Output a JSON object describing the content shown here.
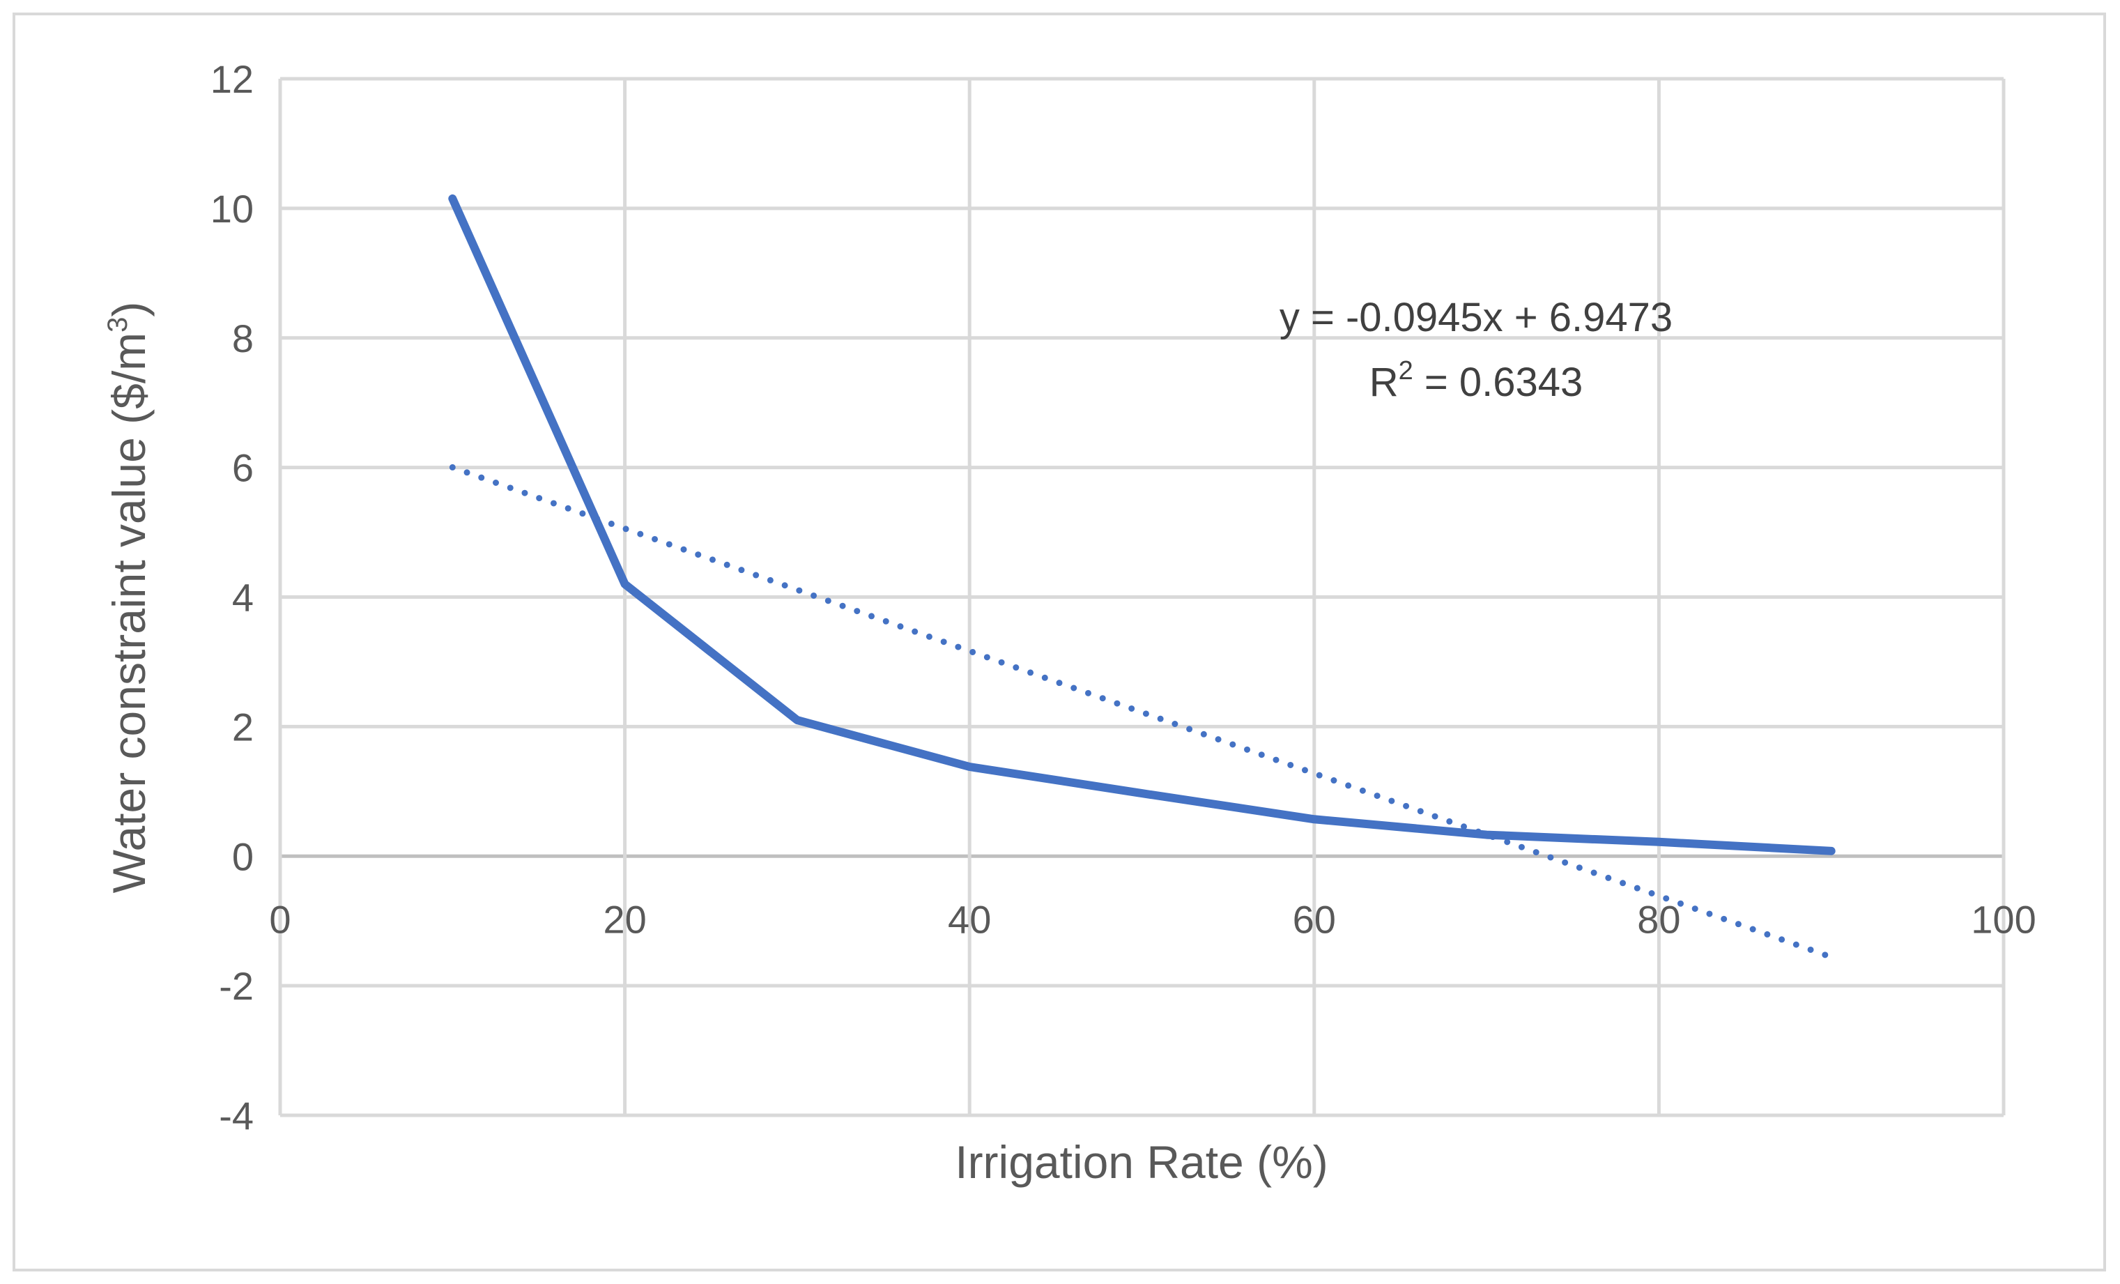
{
  "chart_data": {
    "type": "line",
    "title": "",
    "xlabel": "Irrigation Rate (%)",
    "ylabel_main": "Water constraint value ($/m",
    "ylabel_sup": "3",
    "ylabel_end": ")",
    "xlim": [
      0,
      100
    ],
    "ylim": [
      -4,
      12
    ],
    "xticks": [
      0,
      20,
      40,
      60,
      80,
      100
    ],
    "yticks": [
      -4,
      -2,
      0,
      2,
      4,
      6,
      8,
      10,
      12
    ],
    "grid": true,
    "legend": "none",
    "series": [
      {
        "x": [
          10,
          20,
          30,
          40,
          50,
          60,
          70,
          80,
          90
        ],
        "values": [
          10.15,
          4.2,
          2.1,
          1.38,
          0.97,
          0.57,
          0.33,
          0.22,
          0.08
        ],
        "color": "#4472C4",
        "style": "solid"
      }
    ],
    "trendline": {
      "type": "linear",
      "slope": -0.0945,
      "intercept": 6.9473,
      "x_range": [
        10,
        90
      ],
      "color": "#4472C4",
      "style": "dotted",
      "equation_label": "y = -0.0945x + 6.9473",
      "r2_prefix": "R",
      "r2_sup": "2",
      "r2_value": " = 0.6343"
    }
  }
}
